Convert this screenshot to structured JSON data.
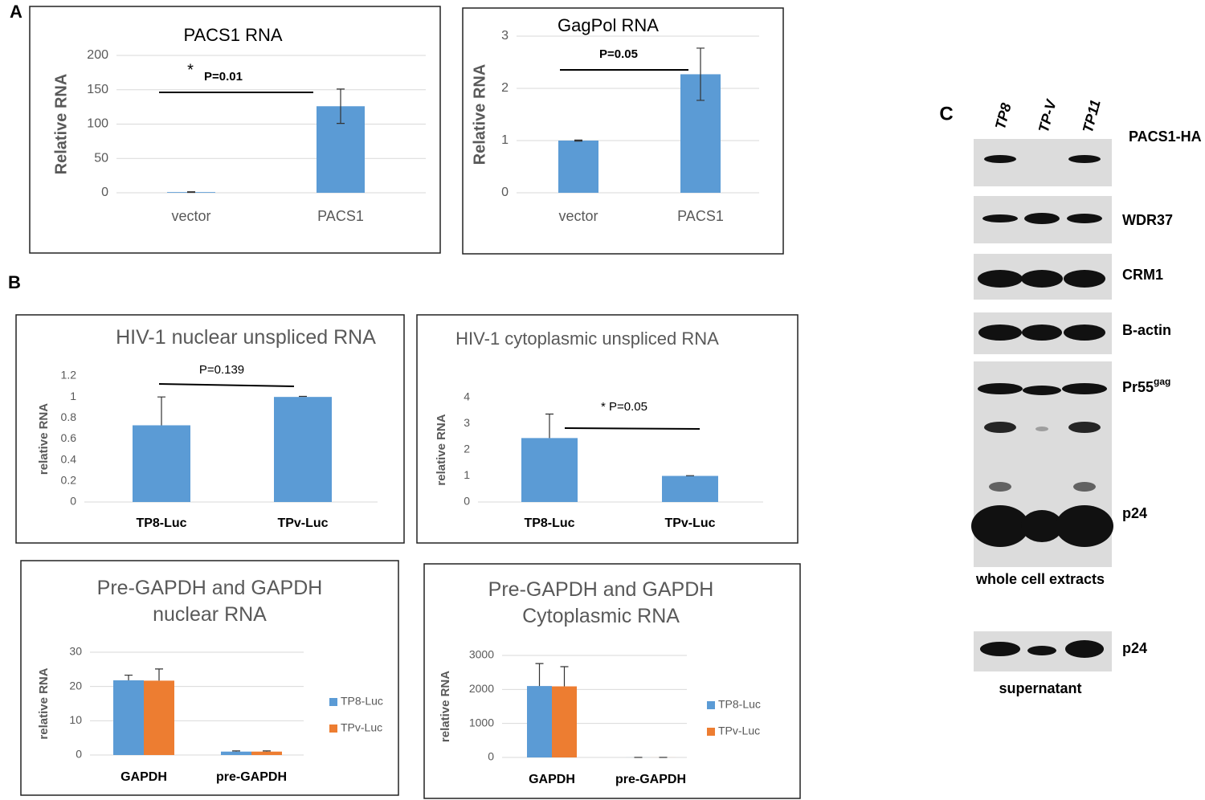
{
  "panel_labels": [
    "A",
    "B",
    "C"
  ],
  "chart_data": [
    {
      "type": "bar",
      "title": "PACS1 RNA",
      "y_label": "Relative RNA",
      "categories": [
        "vector",
        "PACS1"
      ],
      "values": [
        1,
        126
      ],
      "errors": [
        0.5,
        25
      ],
      "error_direction": "both",
      "color": "#5b9bd5",
      "ylim": [
        0,
        200
      ],
      "yticks": [
        0,
        50,
        100,
        150,
        200
      ],
      "grid": true,
      "annotations": [
        "*",
        "P=0.01"
      ]
    },
    {
      "type": "bar",
      "title": "GagPol RNA",
      "y_label": "Relative RNA",
      "categories": [
        "vector",
        "PACS1"
      ],
      "values": [
        1,
        2.27
      ],
      "errors": [
        0.01,
        0.5
      ],
      "error_direction": "both",
      "color": "#5b9bd5",
      "ylim": [
        0,
        3
      ],
      "yticks": [
        0,
        1,
        2,
        3
      ],
      "grid": true,
      "annotations": [
        "P=0.05"
      ]
    },
    {
      "type": "bar",
      "title": "HIV-1 nuclear unspliced RNA",
      "y_label": "relative RNA",
      "categories": [
        "TP8-Luc",
        "TPv-Luc"
      ],
      "values": [
        0.73,
        1
      ],
      "errors": [
        0.27,
        0.005
      ],
      "error_direction": "plus",
      "color": "#5b9bd5",
      "ylim": [
        0,
        1.2
      ],
      "yticks": [
        0,
        0.2,
        0.4,
        0.6,
        0.8,
        1,
        1.2
      ],
      "grid": false,
      "annotations": [
        "P=0.139"
      ]
    },
    {
      "type": "bar",
      "title": "HIV-1 cytoplasmic unspliced RNA",
      "y_label": "relative RNA",
      "categories": [
        "TP8-Luc",
        "TPv-Luc"
      ],
      "values": [
        2.45,
        1
      ],
      "errors": [
        0.92,
        0.01
      ],
      "error_direction": "plus",
      "color": "#5b9bd5",
      "ylim": [
        0,
        4
      ],
      "yticks": [
        0,
        1,
        2,
        3,
        4
      ],
      "grid": false,
      "annotations": [
        "* P=0.05"
      ]
    },
    {
      "type": "grouped_bar",
      "title": "Pre-GAPDH and GAPDH nuclear RNA",
      "y_label": "relative RNA",
      "categories": [
        "GAPDH",
        "pre-GAPDH"
      ],
      "series": [
        {
          "name": "TP8-Luc",
          "color": "#5b9bd5",
          "values": [
            21.8,
            1
          ],
          "errors": [
            1.5,
            0.2
          ]
        },
        {
          "name": "TPv-Luc",
          "color": "#ed7d31",
          "values": [
            21.7,
            1
          ],
          "errors": [
            3.4,
            0.2
          ]
        }
      ],
      "error_direction": "plus",
      "ylim": [
        0,
        30
      ],
      "yticks": [
        0,
        10,
        20,
        30
      ],
      "grid": true,
      "legend": "right"
    },
    {
      "type": "grouped_bar",
      "title": "Pre-GAPDH and GAPDH Cytoplasmic RNA",
      "y_label": "relative RNA",
      "categories": [
        "GAPDH",
        "pre-GAPDH"
      ],
      "series": [
        {
          "name": "TP8-Luc",
          "color": "#5b9bd5",
          "values": [
            2100,
            1
          ],
          "errors": [
            660,
            0
          ]
        },
        {
          "name": "TPv-Luc",
          "color": "#ed7d31",
          "values": [
            2090,
            1
          ],
          "errors": [
            580,
            0
          ]
        }
      ],
      "error_direction": "plus",
      "ylim": [
        0,
        3000
      ],
      "yticks": [
        0,
        1000,
        2000,
        3000
      ],
      "grid": true,
      "legend": "right"
    }
  ],
  "blot": {
    "lanes": [
      "TP8",
      "TP-V",
      "TP11"
    ],
    "bands": [
      "PACS1-HA",
      "WDR37",
      "CRM1",
      "B-actin",
      {
        "text": "Pr55",
        "sup": "gag"
      },
      "p24",
      "p24"
    ],
    "captions": [
      "whole cell extracts",
      "supernatant"
    ]
  }
}
